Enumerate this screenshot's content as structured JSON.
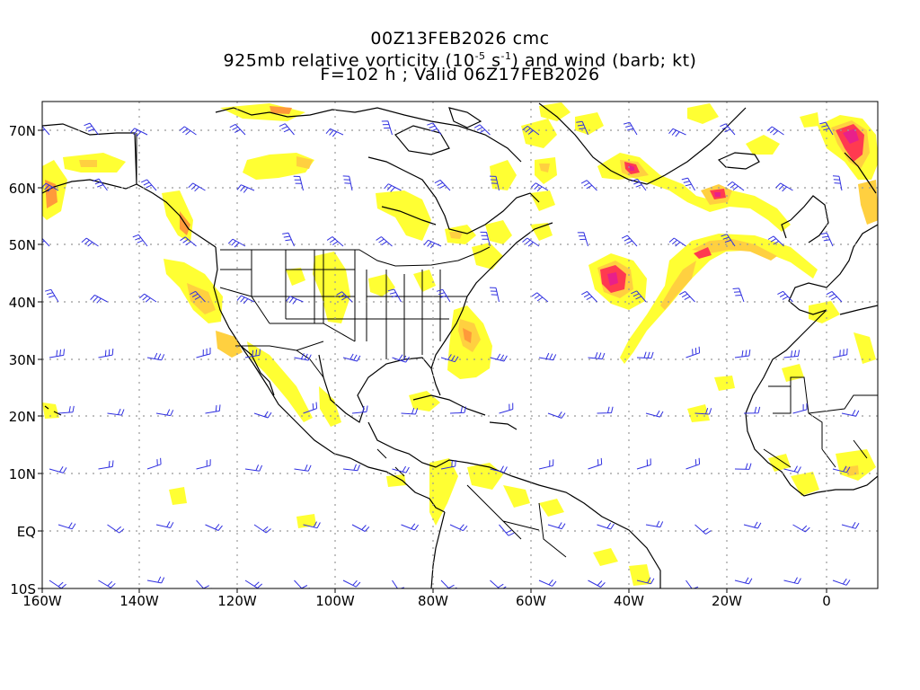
{
  "title": {
    "line1": "00Z13FEB2026 cmc",
    "line2_prefix": "925mb relative vorticity (10",
    "line2_exp1": "-5",
    "line2_mid": " s",
    "line2_exp2": "-1",
    "line2_suffix": ") and wind (barb; kt)",
    "line3": "F=102 h ; Valid 06Z17FEB2026"
  },
  "lat_labels": [
    "70N",
    "60N",
    "50N",
    "40N",
    "30N",
    "20N",
    "10N",
    "EQ",
    "10S"
  ],
  "lon_labels": [
    "160W",
    "140W",
    "120W",
    "100W",
    "80W",
    "60W",
    "40W",
    "20W",
    "0"
  ],
  "colors": {
    "yellow": "#ffff33",
    "light_orange": "#ffd040",
    "orange": "#ff9a3a",
    "red": "#ff3a50",
    "magenta": "#e8208a",
    "barb": "#3030e0",
    "coast": "#000000",
    "grid": "#999999"
  }
}
